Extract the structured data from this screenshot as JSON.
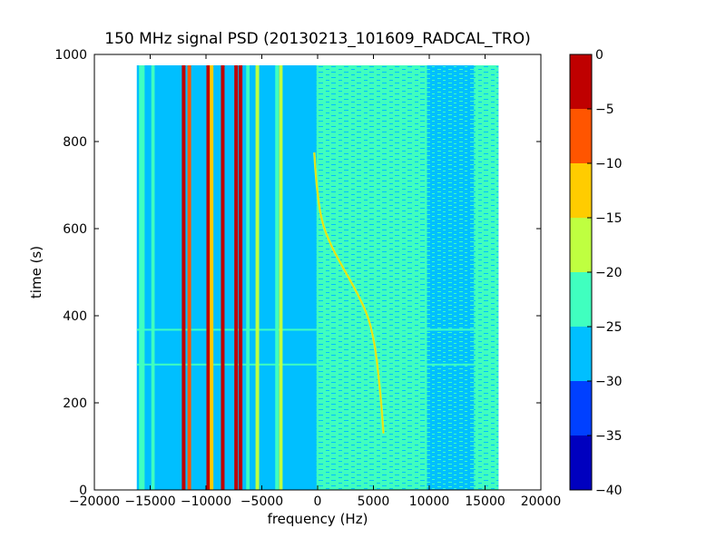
{
  "chart_data": {
    "type": "heatmap",
    "title": "150 MHz signal PSD (20130213_101609_RADCAL_TRO)",
    "xlabel": "frequency (Hz)",
    "ylabel": "time (s)",
    "xlim": [
      -20000,
      20000
    ],
    "ylim": [
      0,
      1000
    ],
    "x_ticks": [
      -20000,
      -15000,
      -10000,
      -5000,
      0,
      5000,
      10000,
      15000,
      20000
    ],
    "x_tick_labels": [
      "−20000",
      "−15000",
      "−10000",
      "−5000",
      "0",
      "5000",
      "10000",
      "15000",
      "20000"
    ],
    "y_ticks": [
      0,
      200,
      400,
      600,
      800,
      1000
    ],
    "y_tick_labels": [
      "0",
      "200",
      "400",
      "600",
      "800",
      "1000"
    ],
    "data_extent": {
      "x": [
        -16200,
        16200
      ],
      "y": [
        0,
        975
      ]
    },
    "colorbar": {
      "range": [
        -40,
        0
      ],
      "levels": [
        -40,
        -35,
        -30,
        -25,
        -20,
        -15,
        -10,
        -5,
        0
      ],
      "tick_labels": [
        "−40",
        "−35",
        "−30",
        "−25",
        "−20",
        "−15",
        "−10",
        "−5",
        "0"
      ],
      "colors": [
        "#0000bf",
        "#0040ff",
        "#00bfff",
        "#40ffbf",
        "#bfff40",
        "#ffcc00",
        "#ff5500",
        "#bf0000"
      ]
    },
    "lines": [
      {
        "label": "tone",
        "freq_hz": -12000,
        "level_db": -5
      },
      {
        "label": "tone",
        "freq_hz": -11500,
        "level_db": -10
      },
      {
        "label": "tone",
        "freq_hz": -9800,
        "level_db": -5
      },
      {
        "label": "tone",
        "freq_hz": -9500,
        "level_db": -15
      },
      {
        "label": "tone",
        "freq_hz": -8500,
        "level_db": -5
      },
      {
        "label": "tone",
        "freq_hz": -7300,
        "level_db": -5
      },
      {
        "label": "tone",
        "freq_hz": -6900,
        "level_db": 0
      },
      {
        "label": "tone",
        "freq_hz": -5400,
        "level_db": -20
      },
      {
        "label": "tone",
        "freq_hz": -3300,
        "level_db": -20
      }
    ],
    "drifting_signal": {
      "points": [
        {
          "t": 775,
          "f": -300
        },
        {
          "t": 700,
          "f": -100
        },
        {
          "t": 620,
          "f": 300
        },
        {
          "t": 560,
          "f": 1200
        },
        {
          "t": 500,
          "f": 2500
        },
        {
          "t": 450,
          "f": 3600
        },
        {
          "t": 400,
          "f": 4500
        },
        {
          "t": 350,
          "f": 5000
        },
        {
          "t": 300,
          "f": 5300
        },
        {
          "t": 250,
          "f": 5500
        },
        {
          "t": 200,
          "f": 5700
        },
        {
          "t": 130,
          "f": 5900
        }
      ],
      "level_db": -15
    }
  }
}
